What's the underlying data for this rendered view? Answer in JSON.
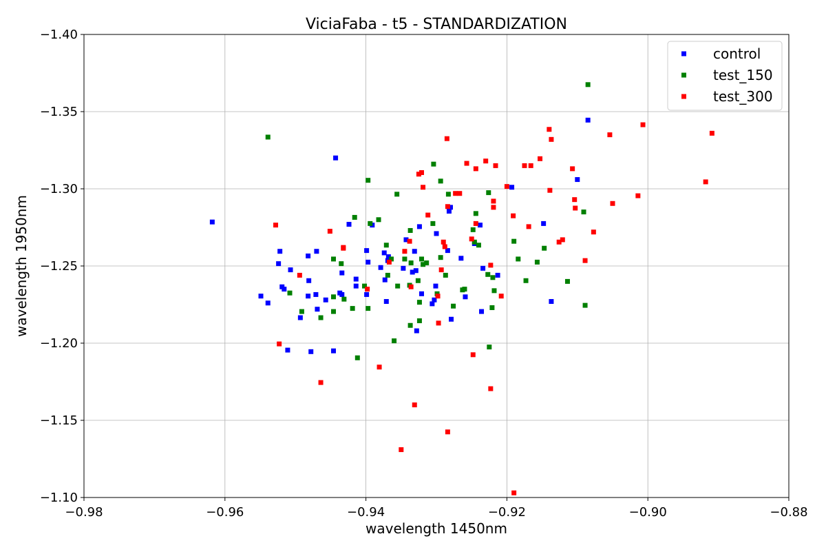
{
  "chart_data": {
    "type": "scatter",
    "title": "ViciaFaba - t5 - STANDARDIZATION",
    "xlabel": "wavelength 1450nm",
    "ylabel": "wavelength 1950nm",
    "xlim": [
      -0.98,
      -0.88
    ],
    "ylim": [
      -1.1,
      -1.4
    ],
    "y_axis_inverted": true,
    "grid": true,
    "legend_position": "top-right",
    "marker": "square",
    "x_ticks": [
      "−0.98",
      "−0.96",
      "−0.94",
      "−0.92",
      "−0.90",
      "−0.88"
    ],
    "x_tick_values": [
      -0.98,
      -0.96,
      -0.94,
      -0.92,
      -0.9,
      -0.88
    ],
    "y_ticks": [
      "−1.40",
      "−1.35",
      "−1.30",
      "−1.25",
      "−1.20",
      "−1.15",
      "−1.10"
    ],
    "y_tick_values": [
      -1.4,
      -1.35,
      -1.3,
      -1.25,
      -1.2,
      -1.15,
      -1.1
    ],
    "series": [
      {
        "name": "control",
        "color": "#0000ff",
        "points": [
          [
            -0.9618,
            -1.2785
          ],
          [
            -0.9549,
            -1.2305
          ],
          [
            -0.9539,
            -1.226
          ],
          [
            -0.9524,
            -1.2515
          ],
          [
            -0.9522,
            -1.2595
          ],
          [
            -0.9519,
            -1.2365
          ],
          [
            -0.9516,
            -1.235
          ],
          [
            -0.9511,
            -1.1955
          ],
          [
            -0.9507,
            -1.2475
          ],
          [
            -0.9493,
            -1.2165
          ],
          [
            -0.9482,
            -1.2565
          ],
          [
            -0.9482,
            -1.2305
          ],
          [
            -0.9481,
            -1.2405
          ],
          [
            -0.9478,
            -1.1945
          ],
          [
            -0.9471,
            -1.2315
          ],
          [
            -0.947,
            -1.2595
          ],
          [
            -0.9469,
            -1.222
          ],
          [
            -0.9457,
            -1.228
          ],
          [
            -0.9446,
            -1.195
          ],
          [
            -0.9443,
            -1.32
          ],
          [
            -0.9437,
            -1.2325
          ],
          [
            -0.9434,
            -1.2315
          ],
          [
            -0.9434,
            -1.2455
          ],
          [
            -0.9424,
            -1.277
          ],
          [
            -0.9414,
            -1.2415
          ],
          [
            -0.9414,
            -1.237
          ],
          [
            -0.9399,
            -1.2315
          ],
          [
            -0.9399,
            -1.26
          ],
          [
            -0.9397,
            -1.2525
          ],
          [
            -0.9391,
            -1.2765
          ],
          [
            -0.9379,
            -1.249
          ],
          [
            -0.9374,
            -1.2585
          ],
          [
            -0.9373,
            -1.241
          ],
          [
            -0.9371,
            -1.227
          ],
          [
            -0.9369,
            -1.2535
          ],
          [
            -0.9368,
            -1.256
          ],
          [
            -0.9347,
            -1.2485
          ],
          [
            -0.9343,
            -1.267
          ],
          [
            -0.9334,
            -1.246
          ],
          [
            -0.9331,
            -1.2595
          ],
          [
            -0.9329,
            -1.247
          ],
          [
            -0.9328,
            -1.208
          ],
          [
            -0.9324,
            -1.2755
          ],
          [
            -0.9321,
            -1.232
          ],
          [
            -0.9306,
            -1.2255
          ],
          [
            -0.9303,
            -1.228
          ],
          [
            -0.9301,
            -1.237
          ],
          [
            -0.93,
            -1.271
          ],
          [
            -0.9284,
            -1.26
          ],
          [
            -0.9282,
            -1.2855
          ],
          [
            -0.928,
            -1.288
          ],
          [
            -0.9279,
            -1.2155
          ],
          [
            -0.9265,
            -1.255
          ],
          [
            -0.9259,
            -1.23
          ],
          [
            -0.9246,
            -1.2645
          ],
          [
            -0.9238,
            -1.2765
          ],
          [
            -0.9236,
            -1.2205
          ],
          [
            -0.9234,
            -1.2485
          ],
          [
            -0.9213,
            -1.244
          ],
          [
            -0.9193,
            -1.301
          ],
          [
            -0.9148,
            -1.2775
          ],
          [
            -0.9137,
            -1.227
          ],
          [
            -0.91,
            -1.306
          ],
          [
            -0.9085,
            -1.3445
          ]
        ]
      },
      {
        "name": "test_150",
        "color": "#008000",
        "points": [
          [
            -0.9539,
            -1.3335
          ],
          [
            -0.9508,
            -1.2325
          ],
          [
            -0.9491,
            -1.2205
          ],
          [
            -0.9464,
            -1.2165
          ],
          [
            -0.9446,
            -1.2205
          ],
          [
            -0.9446,
            -1.23
          ],
          [
            -0.9446,
            -1.2545
          ],
          [
            -0.9435,
            -1.2515
          ],
          [
            -0.9431,
            -1.2285
          ],
          [
            -0.9419,
            -1.2225
          ],
          [
            -0.9416,
            -1.2815
          ],
          [
            -0.9412,
            -1.1905
          ],
          [
            -0.9402,
            -1.237
          ],
          [
            -0.9397,
            -1.2225
          ],
          [
            -0.9397,
            -1.3055
          ],
          [
            -0.9394,
            -1.2775
          ],
          [
            -0.9382,
            -1.28
          ],
          [
            -0.9371,
            -1.2635
          ],
          [
            -0.9369,
            -1.244
          ],
          [
            -0.9364,
            -1.2545
          ],
          [
            -0.936,
            -1.2015
          ],
          [
            -0.9356,
            -1.2965
          ],
          [
            -0.9355,
            -1.237
          ],
          [
            -0.9345,
            -1.2545
          ],
          [
            -0.9338,
            -1.2375
          ],
          [
            -0.9337,
            -1.273
          ],
          [
            -0.9337,
            -1.2115
          ],
          [
            -0.9336,
            -1.252
          ],
          [
            -0.9326,
            -1.2405
          ],
          [
            -0.9324,
            -1.2265
          ],
          [
            -0.9324,
            -1.2145
          ],
          [
            -0.9321,
            -1.2545
          ],
          [
            -0.9319,
            -1.251
          ],
          [
            -0.9314,
            -1.252
          ],
          [
            -0.9305,
            -1.2775
          ],
          [
            -0.9304,
            -1.316
          ],
          [
            -0.9299,
            -1.232
          ],
          [
            -0.9294,
            -1.305
          ],
          [
            -0.9294,
            -1.2555
          ],
          [
            -0.9287,
            -1.244
          ],
          [
            -0.9283,
            -1.2965
          ],
          [
            -0.9276,
            -1.224
          ],
          [
            -0.9263,
            -1.2345
          ],
          [
            -0.926,
            -1.235
          ],
          [
            -0.9248,
            -1.2735
          ],
          [
            -0.9246,
            -1.2655
          ],
          [
            -0.9244,
            -1.284
          ],
          [
            -0.924,
            -1.2635
          ],
          [
            -0.9227,
            -1.2445
          ],
          [
            -0.9226,
            -1.2975
          ],
          [
            -0.9225,
            -1.1975
          ],
          [
            -0.9221,
            -1.223
          ],
          [
            -0.922,
            -1.2425
          ],
          [
            -0.9218,
            -1.234
          ],
          [
            -0.919,
            -1.266
          ],
          [
            -0.9184,
            -1.2545
          ],
          [
            -0.9173,
            -1.2405
          ],
          [
            -0.9157,
            -1.2525
          ],
          [
            -0.9147,
            -1.2615
          ],
          [
            -0.9114,
            -1.24
          ],
          [
            -0.9091,
            -1.285
          ],
          [
            -0.9089,
            -1.2245
          ],
          [
            -0.9085,
            -1.3675
          ]
        ]
      },
      {
        "name": "test_300",
        "color": "#ff0000",
        "points": [
          [
            -0.9528,
            -1.2765
          ],
          [
            -0.9523,
            -1.1995
          ],
          [
            -0.9494,
            -1.244
          ],
          [
            -0.9464,
            -1.1745
          ],
          [
            -0.9451,
            -1.2725
          ],
          [
            -0.9432,
            -1.2615
          ],
          [
            -0.9432,
            -1.262
          ],
          [
            -0.9398,
            -1.235
          ],
          [
            -0.9381,
            -1.1845
          ],
          [
            -0.9367,
            -1.2525
          ],
          [
            -0.935,
            -1.131
          ],
          [
            -0.9345,
            -1.2595
          ],
          [
            -0.9338,
            -1.266
          ],
          [
            -0.9336,
            -1.2365
          ],
          [
            -0.9331,
            -1.16
          ],
          [
            -0.9325,
            -1.3095
          ],
          [
            -0.9321,
            -1.3105
          ],
          [
            -0.9319,
            -1.301
          ],
          [
            -0.9312,
            -1.283
          ],
          [
            -0.9298,
            -1.2305
          ],
          [
            -0.9297,
            -1.213
          ],
          [
            -0.9293,
            -1.2475
          ],
          [
            -0.929,
            -1.2655
          ],
          [
            -0.9288,
            -1.2625
          ],
          [
            -0.9285,
            -1.3325
          ],
          [
            -0.9284,
            -1.2885
          ],
          [
            -0.9284,
            -1.1425
          ],
          [
            -0.9273,
            -1.297
          ],
          [
            -0.9267,
            -1.297
          ],
          [
            -0.9257,
            -1.3165
          ],
          [
            -0.925,
            -1.2675
          ],
          [
            -0.9248,
            -1.1925
          ],
          [
            -0.9244,
            -1.313
          ],
          [
            -0.9244,
            -1.2775
          ],
          [
            -0.923,
            -1.318
          ],
          [
            -0.9223,
            -1.2505
          ],
          [
            -0.9223,
            -1.1705
          ],
          [
            -0.9219,
            -1.292
          ],
          [
            -0.9219,
            -1.288
          ],
          [
            -0.9216,
            -1.315
          ],
          [
            -0.9208,
            -1.2305
          ],
          [
            -0.92,
            -1.3015
          ],
          [
            -0.9191,
            -1.2825
          ],
          [
            -0.919,
            -1.103
          ],
          [
            -0.9175,
            -1.315
          ],
          [
            -0.9169,
            -1.2755
          ],
          [
            -0.9166,
            -1.315
          ],
          [
            -0.9153,
            -1.3195
          ],
          [
            -0.914,
            -1.3385
          ],
          [
            -0.9139,
            -1.299
          ],
          [
            -0.9137,
            -1.332
          ],
          [
            -0.9126,
            -1.2655
          ],
          [
            -0.9121,
            -1.267
          ],
          [
            -0.9107,
            -1.313
          ],
          [
            -0.9104,
            -1.293
          ],
          [
            -0.9103,
            -1.2875
          ],
          [
            -0.9089,
            -1.2535
          ],
          [
            -0.9077,
            -1.272
          ],
          [
            -0.9054,
            -1.335
          ],
          [
            -0.905,
            -1.2905
          ],
          [
            -0.9014,
            -1.2955
          ],
          [
            -0.9007,
            -1.3415
          ],
          [
            -0.8918,
            -1.3045
          ],
          [
            -0.8909,
            -1.336
          ]
        ]
      }
    ]
  }
}
